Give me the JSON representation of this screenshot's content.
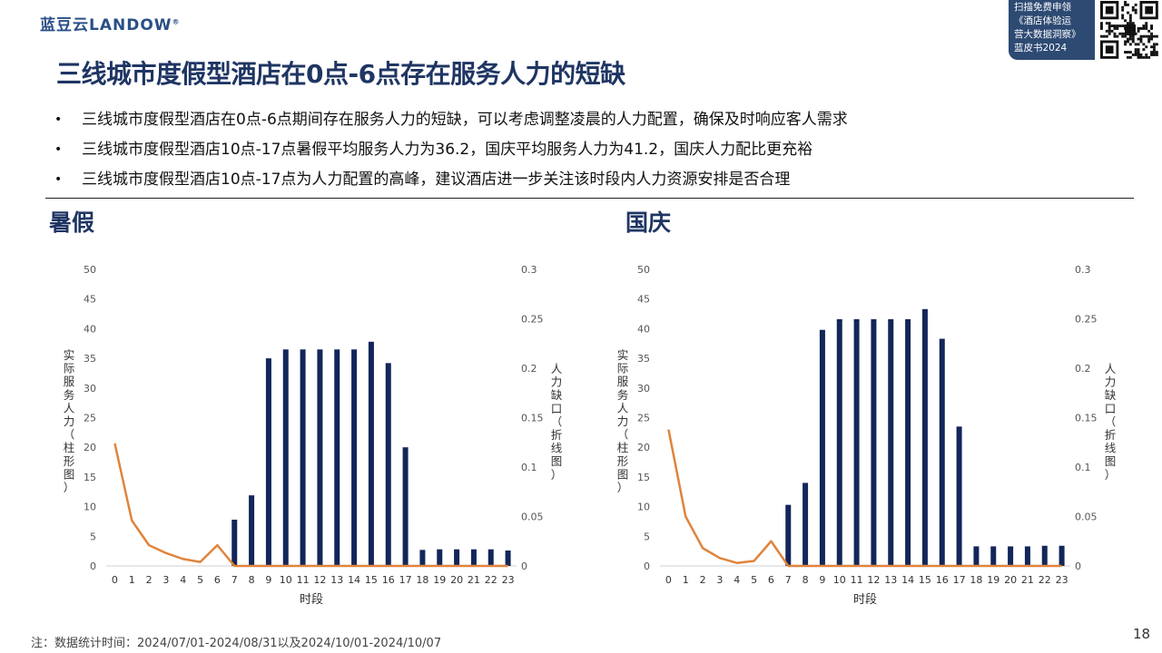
{
  "logo": {
    "text": "蓝豆云LANDOW",
    "mark": "®"
  },
  "promo": {
    "lines": [
      "扫描免费申领",
      "《酒店体验运",
      "营大数据洞察》",
      "蓝皮书2024"
    ]
  },
  "title": "三线城市度假型酒店在0点-6点存在服务人力的短缺",
  "bullets": [
    "三线城市度假型酒店在0点-6点期间存在服务人力的短缺，可以考虑调整凌晨的人力配置，确保及时响应客人需求",
    "三线城市度假型酒店10点-17点暑假平均服务人力为36.2，国庆平均服务人力为41.2，国庆人力配比更充裕",
    "三线城市度假型酒店10点-17点为人力配置的高峰，建议酒店进一步关注该时段内人力资源安排是否合理"
  ],
  "bullet_mark": "•",
  "sections": {
    "summer": "暑假",
    "national": "国庆"
  },
  "colors": {
    "bar": "#13265a",
    "line": "#e0843c",
    "title": "#1f3563"
  },
  "chart_data": [
    {
      "type": "bar",
      "title": "暑假",
      "xlabel": "时段",
      "ylabel": "实际服务人力（柱形图）",
      "y2label": "人力缺口（折线图）",
      "categories": [
        "0",
        "1",
        "2",
        "3",
        "4",
        "5",
        "6",
        "7",
        "8",
        "9",
        "10",
        "11",
        "12",
        "13",
        "14",
        "15",
        "16",
        "17",
        "18",
        "19",
        "20",
        "21",
        "22",
        "23"
      ],
      "ylim": [
        0,
        50
      ],
      "y2lim": [
        0,
        0.3
      ],
      "yticks": [
        "0",
        "5",
        "10",
        "15",
        "20",
        "25",
        "30",
        "35",
        "40",
        "45",
        "50"
      ],
      "y2ticks": [
        "0",
        "0.05",
        "0.1",
        "0.15",
        "0.2",
        "0.25",
        "0.3"
      ],
      "series": [
        {
          "kind": "bar",
          "axis": "left",
          "values": [
            0,
            0,
            0,
            0,
            0,
            0,
            0,
            7.8,
            11.9,
            35,
            36.5,
            36.5,
            36.5,
            36.5,
            36.5,
            37.8,
            34.2,
            20,
            2.7,
            2.8,
            2.8,
            2.8,
            2.8,
            2.6
          ]
        },
        {
          "kind": "line",
          "axis": "right",
          "values": [
            0.124,
            0.046,
            0.021,
            0.013,
            0.007,
            0.004,
            0.021,
            0,
            0,
            0,
            0,
            0,
            0,
            0,
            0,
            0,
            0,
            0,
            0,
            0,
            0,
            0,
            0,
            0
          ]
        }
      ]
    },
    {
      "type": "bar",
      "title": "国庆",
      "xlabel": "时段",
      "ylabel": "实际服务人力（柱形图）",
      "y2label": "人力缺口（折线图）",
      "categories": [
        "0",
        "1",
        "2",
        "3",
        "4",
        "5",
        "6",
        "7",
        "8",
        "9",
        "10",
        "11",
        "12",
        "13",
        "14",
        "15",
        "16",
        "17",
        "18",
        "19",
        "20",
        "21",
        "22",
        "23"
      ],
      "ylim": [
        0,
        50
      ],
      "y2lim": [
        0,
        0.3
      ],
      "yticks": [
        "0",
        "5",
        "10",
        "15",
        "20",
        "25",
        "30",
        "35",
        "40",
        "45",
        "50"
      ],
      "y2ticks": [
        "0",
        "0.05",
        "0.1",
        "0.15",
        "0.2",
        "0.25",
        "0.3"
      ],
      "series": [
        {
          "kind": "bar",
          "axis": "left",
          "values": [
            0,
            0,
            0,
            0,
            0,
            0,
            0,
            10.3,
            14,
            39.8,
            41.6,
            41.6,
            41.6,
            41.6,
            41.6,
            43.3,
            38.3,
            23.5,
            3.3,
            3.3,
            3.3,
            3.3,
            3.4,
            3.4
          ]
        },
        {
          "kind": "line",
          "axis": "right",
          "values": [
            0.138,
            0.05,
            0.018,
            0.008,
            0.003,
            0.005,
            0.025,
            0,
            0,
            0,
            0,
            0,
            0,
            0,
            0,
            0,
            0,
            0,
            0,
            0,
            0,
            0,
            0,
            0
          ]
        }
      ]
    }
  ],
  "note": "注：数据统计时间：2024/07/01-2024/08/31以及2024/10/01-2024/10/07",
  "page_number": "18"
}
